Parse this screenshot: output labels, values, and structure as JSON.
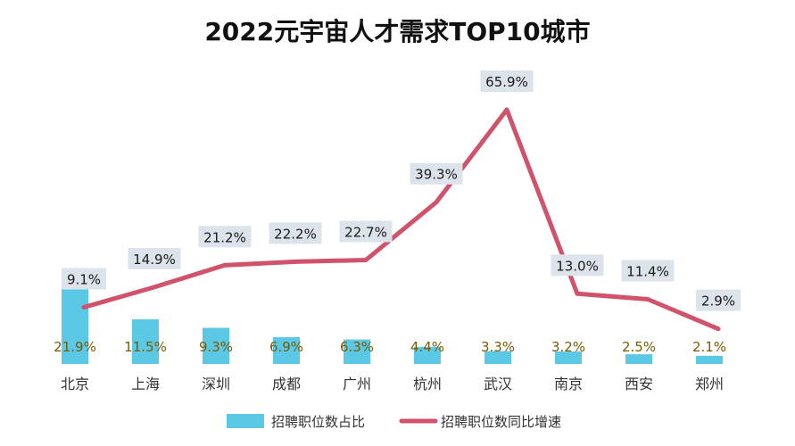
{
  "chart_data": {
    "type": "bar",
    "title": "2022元宇宙人才需求TOP10城市",
    "categories": [
      "北京",
      "上海",
      "深圳",
      "成都",
      "广州",
      "杭州",
      "武汉",
      "南京",
      "西安",
      "郑州"
    ],
    "series": [
      {
        "name": "招聘职位数占比",
        "type": "bar",
        "values": [
          21.9,
          11.5,
          9.3,
          6.9,
          6.3,
          4.4,
          3.3,
          3.2,
          2.5,
          2.1
        ],
        "labels": [
          "21.9%",
          "11.5%",
          "9.3%",
          "6.9%",
          "6.3%",
          "4.4%",
          "3.3%",
          "3.2%",
          "2.5%",
          "2.1%"
        ],
        "color": "#5bc8e6"
      },
      {
        "name": "招聘职位数同比增速",
        "type": "line",
        "values": [
          9.1,
          14.9,
          21.2,
          22.2,
          22.7,
          39.3,
          65.9,
          13.0,
          11.4,
          2.9
        ],
        "labels": [
          "9.1%",
          "14.9%",
          "21.2%",
          "22.2%",
          "22.7%",
          "39.3%",
          "65.9%",
          "13.0%",
          "11.4%",
          "2.9%"
        ],
        "color": "#d0526b"
      }
    ],
    "legend_position": "bottom",
    "grid": false,
    "bar_label_color": "#7a5a00",
    "line_label_bg": "#dde3ea"
  }
}
